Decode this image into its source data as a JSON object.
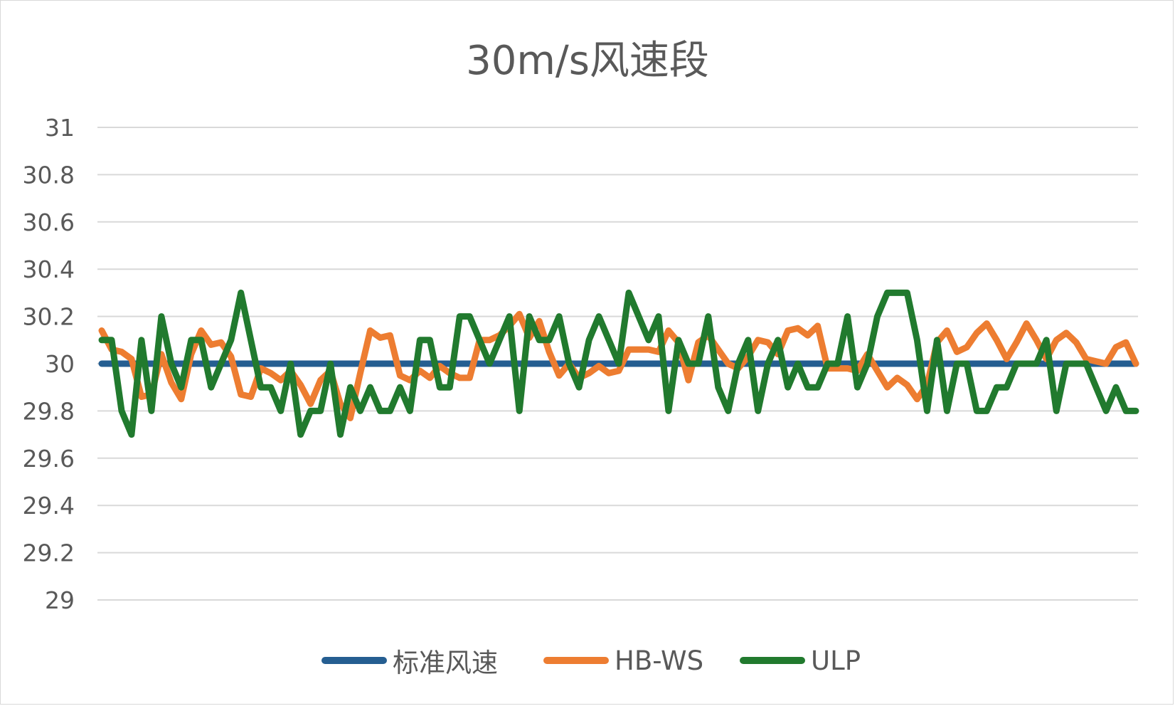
{
  "chart_data": {
    "type": "line",
    "title": "30m/s风速段",
    "xlabel": "",
    "ylabel": "",
    "ylim": [
      29,
      31
    ],
    "yticks": [
      "29",
      "29.2",
      "29.4",
      "29.6",
      "29.8",
      "30",
      "30.2",
      "30.4",
      "30.6",
      "30.8",
      "31"
    ],
    "grid": true,
    "legend": "bottom",
    "x": [
      1,
      2,
      3,
      4,
      5,
      6,
      7,
      8,
      9,
      10,
      11,
      12,
      13,
      14,
      15,
      16,
      17,
      18,
      19,
      20,
      21,
      22,
      23,
      24,
      25,
      26,
      27,
      28,
      29,
      30,
      31,
      32,
      33,
      34,
      35,
      36,
      37,
      38,
      39,
      40,
      41,
      42,
      43,
      44,
      45,
      46,
      47,
      48,
      49,
      50,
      51,
      52,
      53,
      54,
      55,
      56,
      57,
      58,
      59,
      60,
      61,
      62,
      63,
      64,
      65,
      66,
      67,
      68,
      69,
      70,
      71,
      72,
      73,
      74,
      75,
      76,
      77,
      78,
      79,
      80,
      81,
      82,
      83,
      84,
      85,
      86,
      87,
      88,
      89,
      90,
      91,
      92,
      93,
      94,
      95,
      96,
      97,
      98,
      99,
      100,
      101,
      102,
      103,
      104,
      105
    ],
    "series": [
      {
        "name": "标准风速",
        "color": "#255e91",
        "values": [
          30,
          30,
          30,
          30,
          30,
          30,
          30,
          30,
          30,
          30,
          30,
          30,
          30,
          30,
          30,
          30,
          30,
          30,
          30,
          30,
          30,
          30,
          30,
          30,
          30,
          30,
          30,
          30,
          30,
          30,
          30,
          30,
          30,
          30,
          30,
          30,
          30,
          30,
          30,
          30,
          30,
          30,
          30,
          30,
          30,
          30,
          30,
          30,
          30,
          30,
          30,
          30,
          30,
          30,
          30,
          30,
          30,
          30,
          30,
          30,
          30,
          30,
          30,
          30,
          30,
          30,
          30,
          30,
          30,
          30,
          30,
          30,
          30,
          30,
          30,
          30,
          30,
          30,
          30,
          30,
          30,
          30,
          30,
          30,
          30,
          30,
          30,
          30,
          30,
          30,
          30,
          30,
          30,
          30,
          30,
          30,
          30,
          30,
          30,
          30,
          30,
          30,
          30,
          30,
          30
        ]
      },
      {
        "name": "HB-WS",
        "color": "#ed7d31",
        "values": [
          30.14,
          30.06,
          30.05,
          30.02,
          29.86,
          29.87,
          30.04,
          29.92,
          29.85,
          30.04,
          30.14,
          30.08,
          30.09,
          30.03,
          29.87,
          29.86,
          29.98,
          29.96,
          29.93,
          29.97,
          29.91,
          29.83,
          29.93,
          29.97,
          29.83,
          29.77,
          29.96,
          30.14,
          30.11,
          30.12,
          29.95,
          29.93,
          29.97,
          29.94,
          29.99,
          29.96,
          29.94,
          29.94,
          30.1,
          30.1,
          30.12,
          30.16,
          30.21,
          30.11,
          30.18,
          30.05,
          29.95,
          30.0,
          29.94,
          29.96,
          29.99,
          29.96,
          29.97,
          30.06,
          30.06,
          30.06,
          30.05,
          30.14,
          30.09,
          29.93,
          30.09,
          30.12,
          30.06,
          30.0,
          29.98,
          30.03,
          30.1,
          30.09,
          30.04,
          30.14,
          30.15,
          30.12,
          30.16,
          29.98,
          29.98,
          29.98,
          29.97,
          30.04,
          29.97,
          29.9,
          29.94,
          29.91,
          29.85,
          29.91,
          30.09,
          30.14,
          30.05,
          30.07,
          30.13,
          30.17,
          30.1,
          30.02,
          30.09,
          30.17,
          30.1,
          30.02,
          30.1,
          30.13,
          30.09,
          30.02,
          30.01,
          30.0,
          30.07,
          30.09,
          30.0
        ]
      },
      {
        "name": "ULP",
        "color": "#217a2e",
        "values": [
          30.1,
          30.1,
          29.8,
          29.7,
          30.1,
          29.8,
          30.2,
          30.0,
          29.9,
          30.1,
          30.1,
          29.9,
          30.0,
          30.1,
          30.3,
          30.1,
          29.9,
          29.9,
          29.8,
          30.0,
          29.7,
          29.8,
          29.8,
          30.0,
          29.7,
          29.9,
          29.8,
          29.9,
          29.8,
          29.8,
          29.9,
          29.8,
          30.1,
          30.1,
          29.9,
          29.9,
          30.2,
          30.2,
          30.1,
          30.0,
          30.1,
          30.2,
          29.8,
          30.2,
          30.1,
          30.1,
          30.2,
          30.0,
          29.9,
          30.1,
          30.2,
          30.1,
          30.0,
          30.3,
          30.2,
          30.1,
          30.2,
          29.8,
          30.1,
          30.0,
          30.0,
          30.2,
          29.9,
          29.8,
          30.0,
          30.1,
          29.8,
          30.0,
          30.1,
          29.9,
          30.0,
          29.9,
          29.9,
          30.0,
          30.0,
          30.2,
          29.9,
          30.0,
          30.2,
          30.3,
          30.3,
          30.3,
          30.1,
          29.8,
          30.1,
          29.8,
          30.0,
          30.0,
          29.8,
          29.8,
          29.9,
          29.9,
          30.0,
          30.0,
          30.0,
          30.1,
          29.8,
          30.0,
          30.0,
          30.0,
          29.9,
          29.8,
          29.9,
          29.8,
          29.8
        ]
      }
    ]
  }
}
